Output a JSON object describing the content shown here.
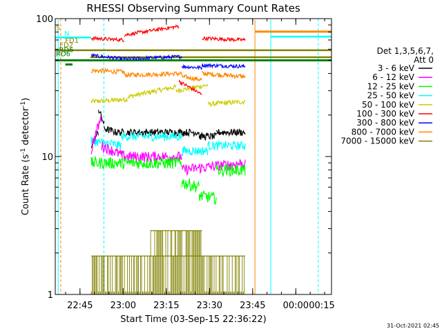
{
  "chart_data": {
    "type": "line",
    "title": "RHESSI Observing Summary Count Rates",
    "xlabel": "Start Time (03-Sep-15 22:36:22)",
    "ylabel_main": "Count Rate (s",
    "ylabel_sup": "-1",
    "ylabel_tail": " detector",
    "ylabel_end": ")",
    "y_scale": "log",
    "ylim": [
      1,
      100
    ],
    "y_tick_labels": [
      "1",
      "10",
      "100"
    ],
    "x_tick_labels": [
      "22:45",
      "23:00",
      "23:15",
      "23:30",
      "23:45",
      "00:00",
      "00:15"
    ],
    "x_range_minutes": [
      0,
      96
    ],
    "x_ticks_minutes": [
      8.6,
      23.6,
      38.6,
      53.6,
      68.6,
      83.6,
      98.6
    ],
    "legend": {
      "header_line1": "Det 1,3,5,6,7,",
      "header_line2": "Att 0",
      "placement": "right"
    },
    "series": [
      {
        "name": "3 - 6 keV",
        "color": "#000000"
      },
      {
        "name": "6 - 12 keV",
        "color": "#ff00ff"
      },
      {
        "name": "12 - 25 keV",
        "color": "#00ff00"
      },
      {
        "name": "25 - 50 keV",
        "color": "#00ffff"
      },
      {
        "name": "50 - 100 keV",
        "color": "#cccc00"
      },
      {
        "name": "100 - 300 keV",
        "color": "#ff0000"
      },
      {
        "name": "300 - 800 keV",
        "color": "#0000ff"
      },
      {
        "name": "800 - 7000 keV",
        "color": "#ff8800"
      },
      {
        "name": "7000 - 15000 keV",
        "color": "#808000"
      }
    ],
    "flag_labels": [
      {
        "text": "S",
        "color": "#ff8800"
      },
      {
        "text": "N",
        "color": "#00ffff"
      },
      {
        "text": "FD1",
        "color": "#808000"
      },
      {
        "text": "FD2",
        "color": "#808000"
      },
      {
        "text": "RD6",
        "color": "#008000"
      },
      {
        "text": "RD6",
        "color": "#008000"
      }
    ],
    "timestamp": "31-Oct-2021 02:45"
  }
}
